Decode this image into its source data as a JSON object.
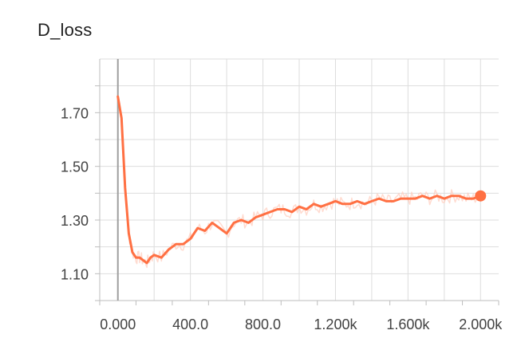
{
  "chart_data": {
    "type": "line",
    "title": "D_loss",
    "xlabel": "",
    "ylabel": "",
    "xlim": [
      -100,
      2100
    ],
    "ylim": [
      1.0,
      1.9
    ],
    "x_ticks": [
      0,
      400,
      800,
      1200,
      1600,
      2000
    ],
    "x_tick_labels": [
      "0.000",
      "400.0",
      "800.0",
      "1.200k",
      "1.600k",
      "2.000k"
    ],
    "y_ticks": [
      1.1,
      1.3,
      1.5,
      1.7
    ],
    "y_tick_labels": [
      "1.10",
      "1.30",
      "1.50",
      "1.70"
    ],
    "grid": true,
    "colors": {
      "line": "#ff7043",
      "raw_line": "#ffccbc",
      "grid": "#dddddd",
      "axis": "#bdbdbd",
      "zero_line": "#9e9e9e"
    },
    "series": [
      {
        "x": [
          0,
          20,
          40,
          60,
          80,
          100,
          120,
          140,
          160,
          180,
          200,
          240,
          280,
          320,
          360,
          400,
          440,
          480,
          520,
          560,
          600,
          640,
          680,
          720,
          760,
          800,
          840,
          880,
          920,
          960,
          1000,
          1040,
          1080,
          1120,
          1160,
          1200,
          1240,
          1280,
          1320,
          1360,
          1400,
          1440,
          1480,
          1520,
          1560,
          1600,
          1640,
          1680,
          1720,
          1760,
          1800,
          1840,
          1880,
          1920,
          1960,
          2000
        ],
        "y": [
          1.76,
          1.68,
          1.42,
          1.25,
          1.18,
          1.16,
          1.16,
          1.15,
          1.14,
          1.16,
          1.17,
          1.16,
          1.19,
          1.21,
          1.21,
          1.23,
          1.27,
          1.26,
          1.29,
          1.27,
          1.25,
          1.29,
          1.3,
          1.29,
          1.31,
          1.32,
          1.33,
          1.34,
          1.34,
          1.33,
          1.35,
          1.34,
          1.36,
          1.35,
          1.36,
          1.37,
          1.36,
          1.36,
          1.37,
          1.36,
          1.37,
          1.38,
          1.37,
          1.37,
          1.38,
          1.38,
          1.38,
          1.39,
          1.38,
          1.39,
          1.38,
          1.39,
          1.39,
          1.38,
          1.38,
          1.39
        ]
      }
    ]
  }
}
